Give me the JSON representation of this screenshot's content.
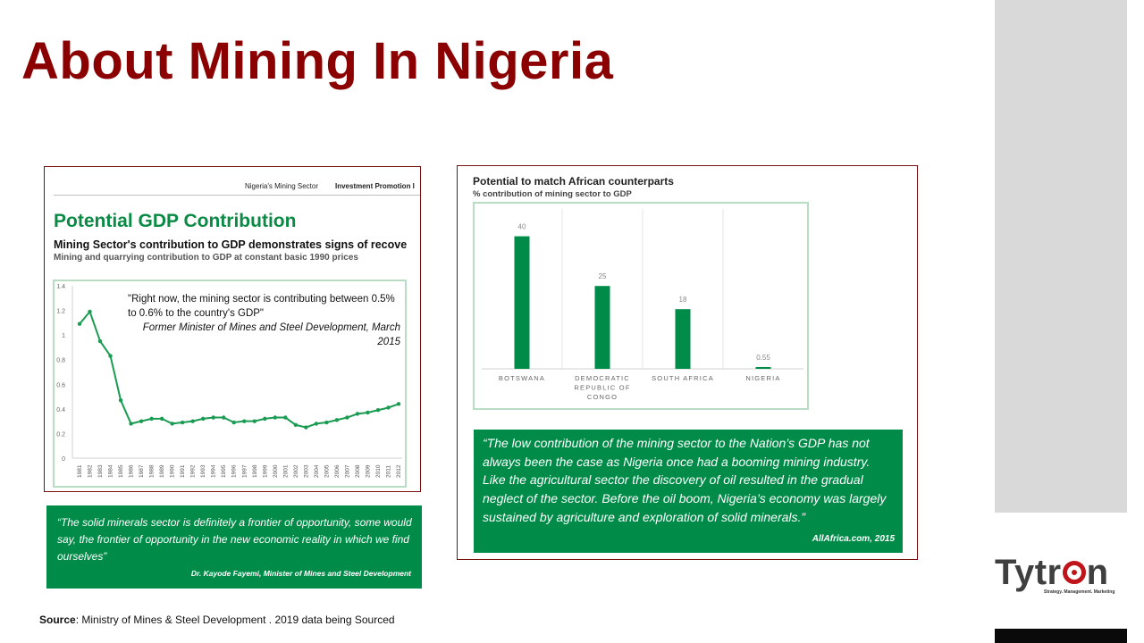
{
  "slide": {
    "title": "About Mining In Nigeria",
    "source_label": "Source",
    "source_text": ": Ministry of Mines & Steel Development . 2019 data being Sourced"
  },
  "logo": {
    "text_a": "Tytr",
    "text_b": "n",
    "tagline": "Strategy. Management. Marketing"
  },
  "left_panel": {
    "header_a": "Nigeria's Mining Sector",
    "header_b": "Investment Promotion I",
    "title": "Potential GDP Contribution",
    "subtitle": "Mining Sector's contribution to GDP demonstrates signs of recove",
    "subtitle2": "Mining and quarrying contribution to GDP at constant basic 1990 prices",
    "quote": "\"Right now, the mining sector is contributing between 0.5% to 0.6% to the country's GDP\"",
    "quote_attr": "Former Minister of Mines and Steel Development, March 2015"
  },
  "left_quote_box": {
    "quote": "“The solid minerals sector is definitely a frontier of opportunity, some would say, the frontier of opportunity in the new economic reality in which we find ourselves”",
    "attribution": "Dr. Kayode Fayemi, Minister of Mines and Steel Development"
  },
  "right_panel": {
    "title": "Potential to match African counterparts",
    "subtitle": "% contribution of mining sector to GDP"
  },
  "right_quote_box": {
    "quote": "“The low contribution of the mining sector to the Nation’s GDP has not always been the case as Nigeria once had a booming mining industry. Like the agricultural sector the discovery of oil resulted in the gradual neglect of the sector. Before the oil boom, Nigeria’s economy was largely sustained by agriculture and exploration of solid minerals.”",
    "attribution": "AllAfrica.com, 2015"
  },
  "colors": {
    "title": "#8b0000",
    "green": "#008c48",
    "line": "#1a9b52",
    "logo_red": "#c0141b"
  },
  "chart_data": [
    {
      "type": "line",
      "title": "",
      "xlabel": "",
      "ylabel": "",
      "x": [
        "1981",
        "1982",
        "1983",
        "1984",
        "1985",
        "1986",
        "1987",
        "1988",
        "1989",
        "1990",
        "1991",
        "1992",
        "1993",
        "1994",
        "1995",
        "1996",
        "1997",
        "1998",
        "1999",
        "2000",
        "2001",
        "2002",
        "2003",
        "2004",
        "2005",
        "2006",
        "2007",
        "2008",
        "2009",
        "2010",
        "2011",
        "2012"
      ],
      "series": [
        {
          "values": [
            1.09,
            1.19,
            0.95,
            0.83,
            0.47,
            0.28,
            0.3,
            0.32,
            0.32,
            0.28,
            0.29,
            0.3,
            0.32,
            0.33,
            0.33,
            0.29,
            0.3,
            0.3,
            0.32,
            0.33,
            0.33,
            0.27,
            0.25,
            0.28,
            0.29,
            0.31,
            0.33,
            0.36,
            0.37,
            0.39,
            0.41,
            0.44
          ]
        }
      ],
      "yticks": [
        "0",
        "0.2",
        "0.4",
        "0.6",
        "0.8",
        "1",
        "1.2",
        "1.4"
      ],
      "ylim": [
        0,
        1.4
      ],
      "grid": false,
      "markers": true
    },
    {
      "type": "bar",
      "title": "",
      "categories": [
        "BOTSWANA",
        "DEMOCRATIC REPUBLIC OF CONGO",
        "SOUTH AFRICA",
        "NIGERIA"
      ],
      "category_lines": [
        [
          "BOTSWANA"
        ],
        [
          "DEMOCRATIC",
          "REPUBLIC OF",
          "CONGO"
        ],
        [
          "SOUTH AFRICA"
        ],
        [
          "NIGERIA"
        ]
      ],
      "values": [
        40,
        25,
        18,
        0.55
      ],
      "value_labels": [
        "40",
        "25",
        "18",
        "0.55"
      ],
      "ylim": [
        0,
        45
      ],
      "grid": false
    }
  ]
}
